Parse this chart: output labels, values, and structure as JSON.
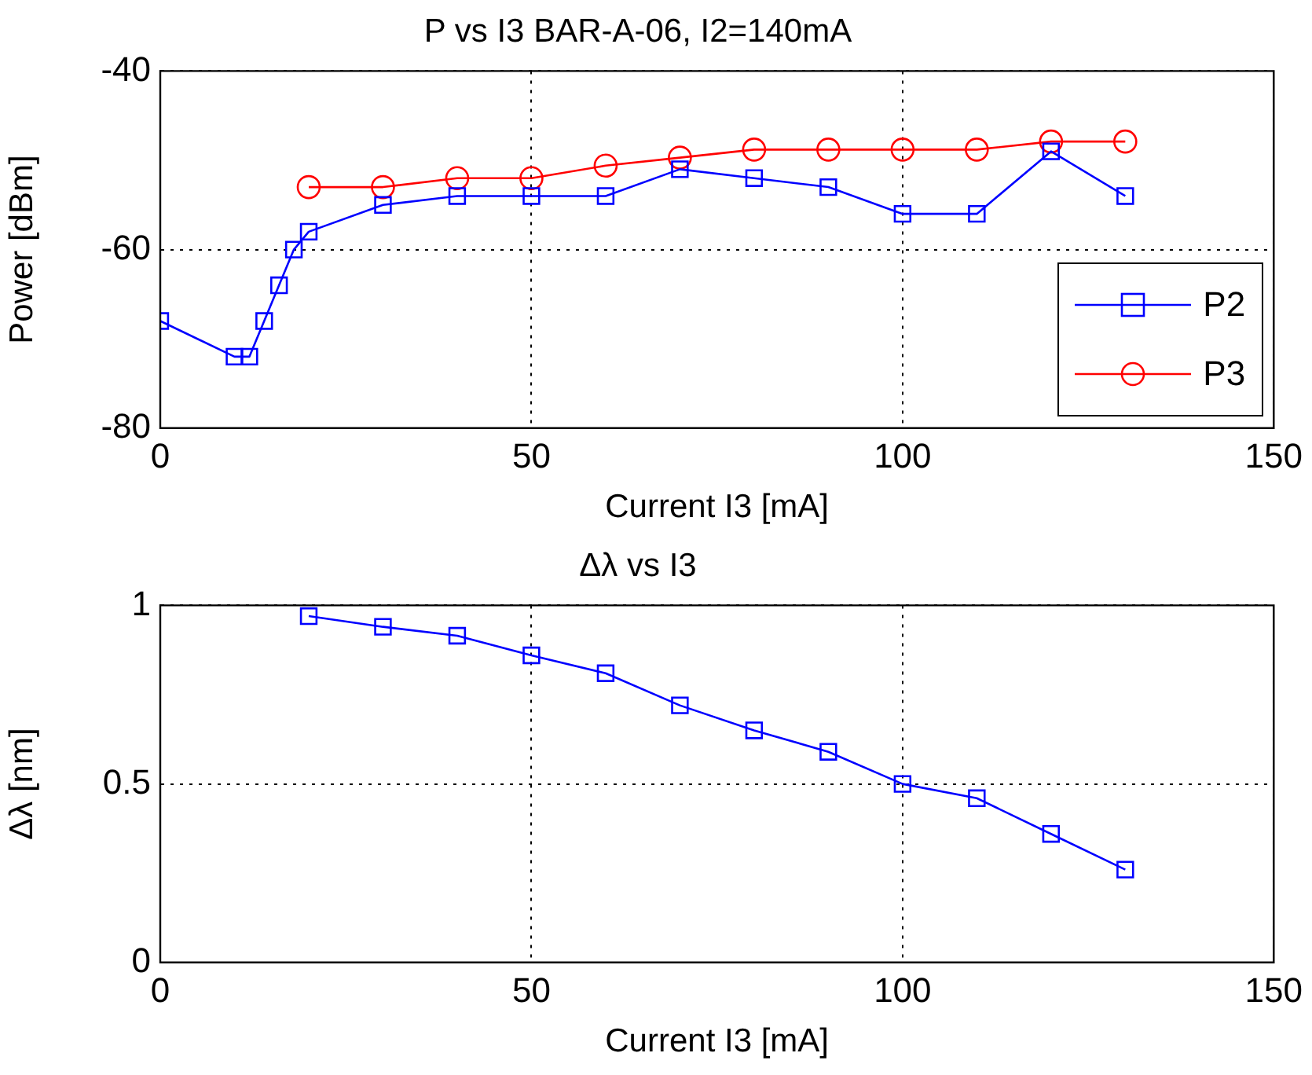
{
  "chart_data": [
    {
      "type": "line",
      "title": "P vs I3 BAR-A-06, I2=140mA",
      "xlabel": "Current I3 [mA]",
      "ylabel": "Power [dBm]",
      "xlim": [
        0,
        150
      ],
      "xticks": [
        0,
        50,
        100,
        150
      ],
      "ylim": [
        -80,
        -40
      ],
      "yticks": [
        -80,
        -60,
        -40
      ],
      "grid": true,
      "legend": "bottom right",
      "line_style": "solid",
      "series": [
        {
          "name": "P2",
          "color": "#0000ff",
          "marker": "square",
          "x": [
            0,
            10,
            12,
            14,
            16,
            18,
            20,
            30,
            40,
            50,
            60,
            70,
            80,
            90,
            100,
            110,
            120,
            130
          ],
          "values": [
            -68,
            -72,
            -72,
            -68,
            -64,
            -60,
            -58,
            -55,
            -54,
            -54,
            -54,
            -51,
            -52,
            -53,
            -56,
            -56,
            -49,
            -54
          ]
        },
        {
          "name": "P3",
          "color": "#ff0000",
          "marker": "circle",
          "x": [
            20,
            30,
            40,
            50,
            60,
            70,
            80,
            90,
            100,
            110,
            120,
            130
          ],
          "values": [
            -53,
            -53,
            -52,
            -52,
            -50.6,
            -49.7,
            -48.8,
            -48.8,
            -48.8,
            -48.8,
            -47.9,
            -47.9
          ]
        }
      ]
    },
    {
      "type": "line",
      "title": "Δλ vs I3",
      "xlabel": "Current I3 [mA]",
      "ylabel": "Δλ [nm]",
      "xlim": [
        0,
        150
      ],
      "xticks": [
        0,
        50,
        100,
        150
      ],
      "ylim": [
        0,
        1
      ],
      "yticks": [
        0,
        0.5,
        1
      ],
      "grid": true,
      "line_style": "solid",
      "series": [
        {
          "color": "#0000ff",
          "marker": "square",
          "x": [
            20,
            30,
            40,
            50,
            60,
            70,
            80,
            90,
            100,
            110,
            120,
            130
          ],
          "values": [
            0.97,
            0.94,
            0.915,
            0.86,
            0.81,
            0.72,
            0.65,
            0.59,
            0.5,
            0.46,
            0.36,
            0.26
          ]
        }
      ]
    }
  ]
}
